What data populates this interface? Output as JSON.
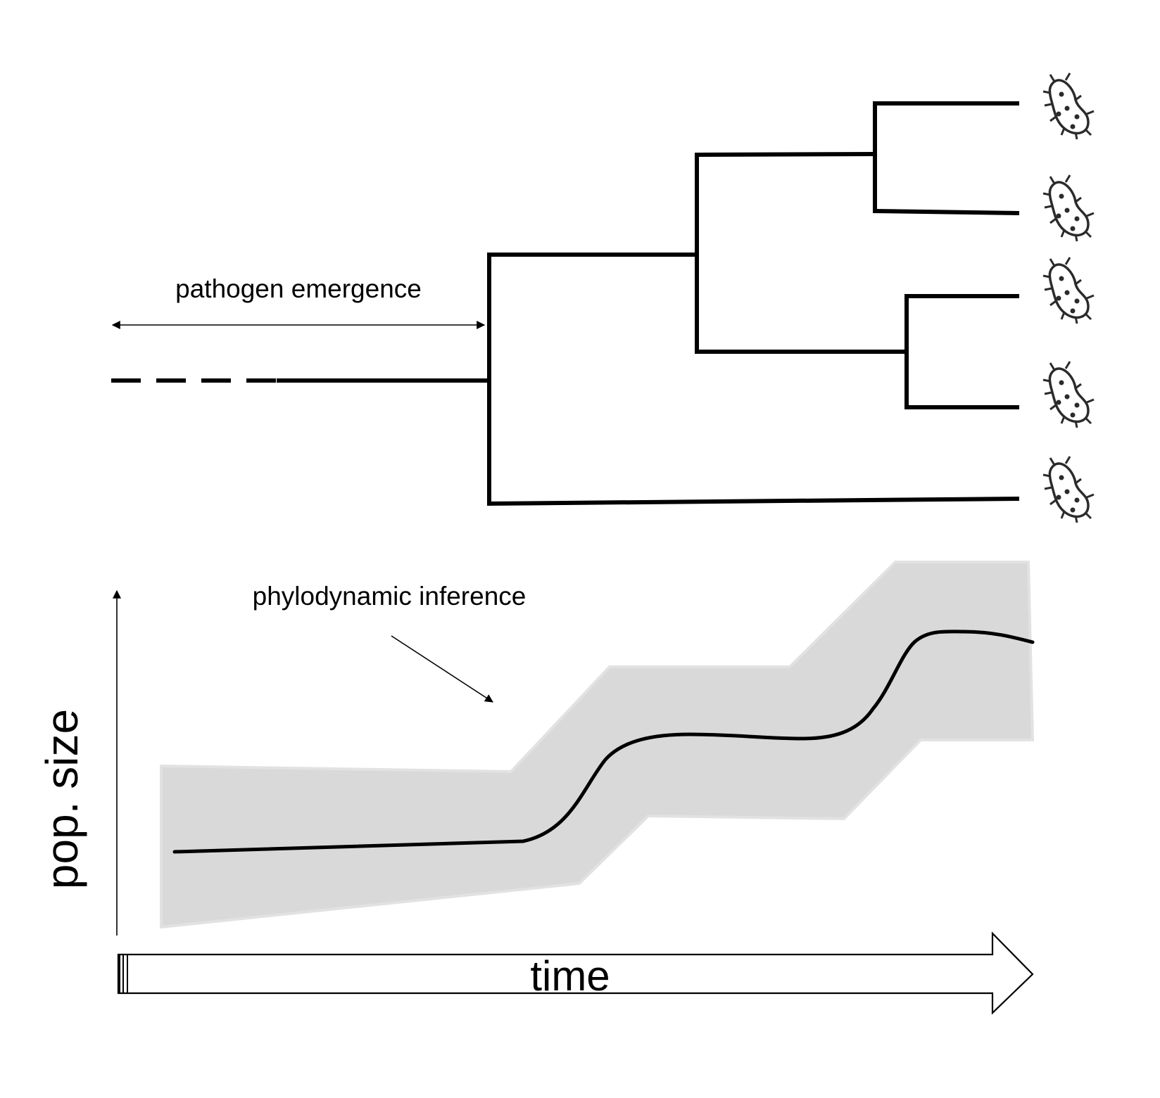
{
  "labels": {
    "emergence": "pathogen emergence",
    "inference": "phylodynamic inference",
    "y_axis": "pop. size",
    "x_axis": "time"
  },
  "tips": [
    {
      "icon": "bacterium-icon"
    },
    {
      "icon": "bacterium-icon"
    },
    {
      "icon": "bacterium-icon"
    },
    {
      "icon": "bacterium-icon"
    },
    {
      "icon": "bacterium-icon"
    }
  ],
  "colors": {
    "line": "#000000",
    "band": "#d9d9d9",
    "band_edge": "#e2e2e2",
    "icon": "#2b2b2b"
  }
}
